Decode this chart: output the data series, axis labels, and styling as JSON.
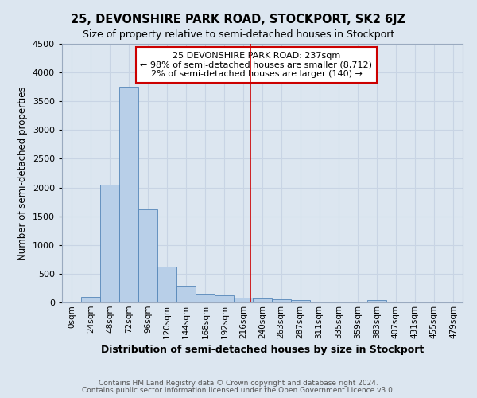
{
  "title": "25, DEVONSHIRE PARK ROAD, STOCKPORT, SK2 6JZ",
  "subtitle": "Size of property relative to semi-detached houses in Stockport",
  "xlabel": "Distribution of semi-detached houses by size in Stockport",
  "ylabel": "Number of semi-detached properties",
  "footer1": "Contains HM Land Registry data © Crown copyright and database right 2024.",
  "footer2": "Contains public sector information licensed under the Open Government Licence v3.0.",
  "annotation_title": "25 DEVONSHIRE PARK ROAD: 237sqm",
  "annotation_line1": "← 98% of semi-detached houses are smaller (8,712)",
  "annotation_line2": "2% of semi-detached houses are larger (140) →",
  "property_size": 237,
  "bins": [
    0,
    24,
    48,
    72,
    96,
    120,
    144,
    168,
    192,
    216,
    240,
    263,
    287,
    311,
    335,
    359,
    383,
    407,
    431,
    455,
    479,
    503
  ],
  "bin_labels": [
    "0sqm",
    "24sqm",
    "48sqm",
    "72sqm",
    "96sqm",
    "120sqm",
    "144sqm",
    "168sqm",
    "192sqm",
    "216sqm",
    "240sqm",
    "263sqm",
    "287sqm",
    "311sqm",
    "335sqm",
    "359sqm",
    "383sqm",
    "407sqm",
    "431sqm",
    "455sqm",
    "479sqm"
  ],
  "counts": [
    0,
    100,
    2050,
    3750,
    1620,
    630,
    290,
    155,
    120,
    80,
    75,
    55,
    35,
    20,
    10,
    5,
    40,
    5,
    5,
    5,
    5
  ],
  "bar_color": "#b8cfe8",
  "bar_edgecolor": "#5586b8",
  "vline_color": "#cc0000",
  "background_color": "#dce6f0",
  "grid_color": "#c8d4e4",
  "annotation_box_color": "#ffffff",
  "annotation_box_edgecolor": "#cc0000",
  "ylim": [
    0,
    4500
  ],
  "yticks": [
    0,
    500,
    1000,
    1500,
    2000,
    2500,
    3000,
    3500,
    4000,
    4500
  ]
}
